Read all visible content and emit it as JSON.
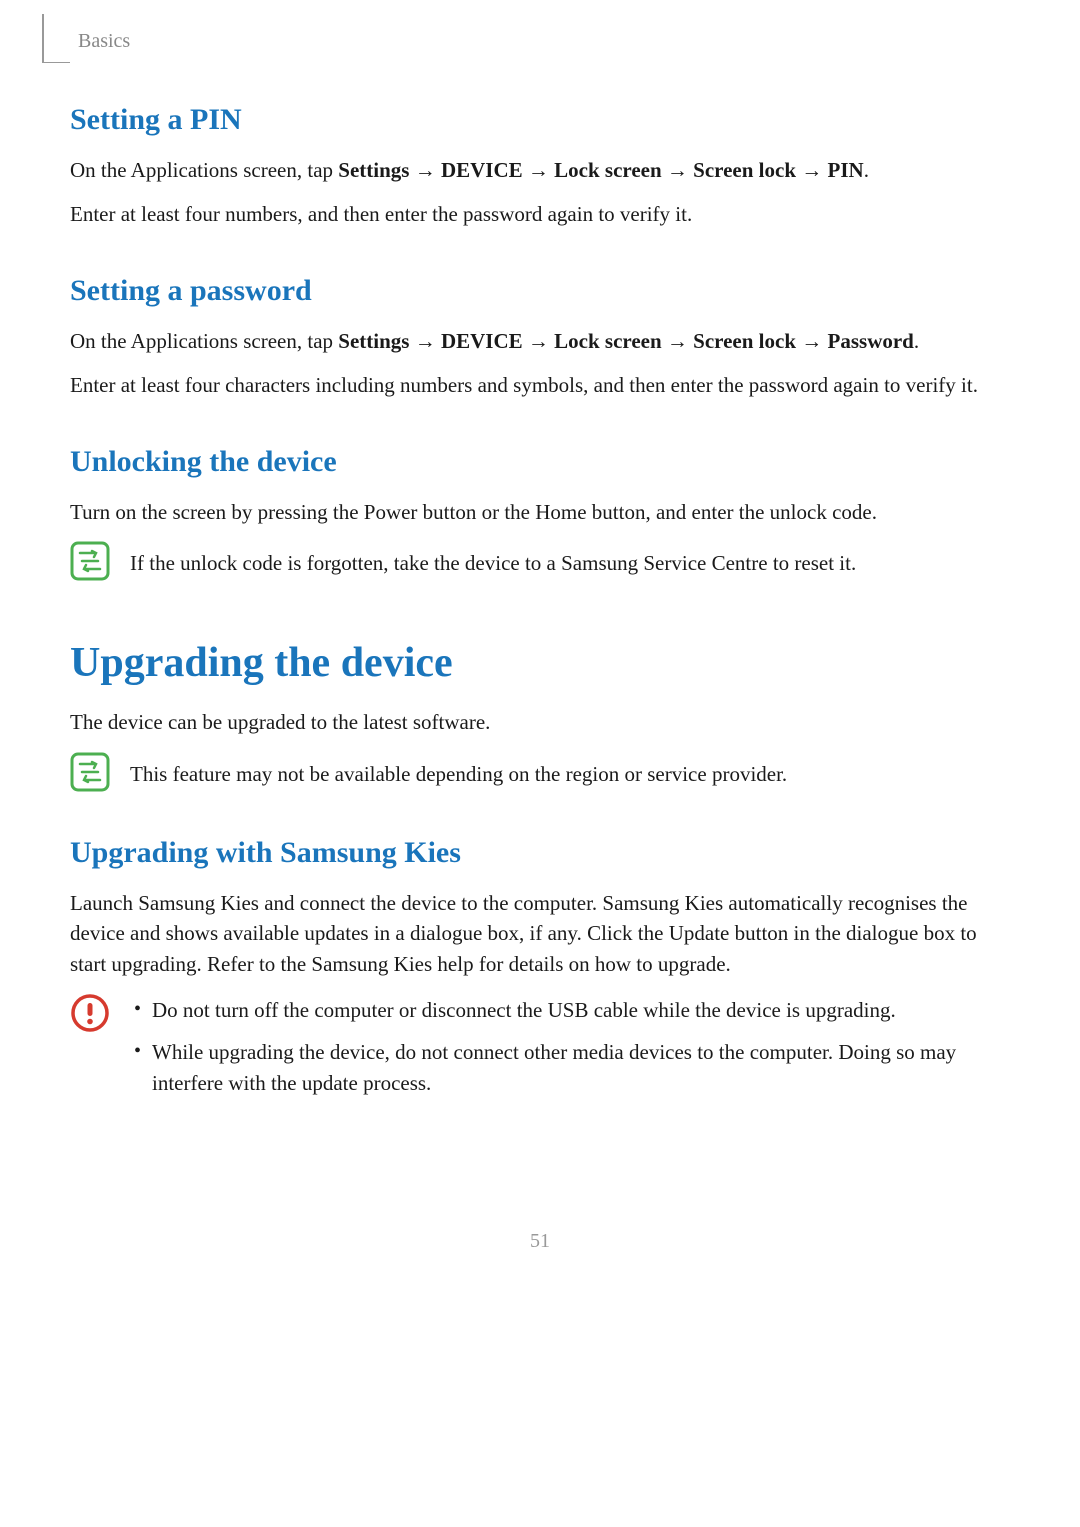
{
  "colors": {
    "heading_blue": "#1a75bb",
    "body_text": "#1a1a1a",
    "muted_gray": "#888888",
    "note_green": "#4caf50",
    "warning_red": "#d63a2e",
    "page_bg": "#ffffff"
  },
  "typography": {
    "body_fontsize": 21,
    "section_heading_fontsize": 30,
    "major_heading_fontsize": 42,
    "header_label_fontsize": 20
  },
  "header": {
    "breadcrumb": "Basics"
  },
  "sections": {
    "pin": {
      "heading": "Setting a PIN",
      "intro_prefix": "On the Applications screen, tap ",
      "path": [
        "Settings",
        "DEVICE",
        "Lock screen",
        "Screen lock",
        "PIN"
      ],
      "intro_suffix": ".",
      "body": "Enter at least four numbers, and then enter the password again to verify it."
    },
    "password": {
      "heading": "Setting a password",
      "intro_prefix": "On the Applications screen, tap ",
      "path": [
        "Settings",
        "DEVICE",
        "Lock screen",
        "Screen lock",
        "Password"
      ],
      "intro_suffix": ".",
      "body": "Enter at least four characters including numbers and symbols, and then enter the password again to verify it."
    },
    "unlock": {
      "heading": "Unlocking the device",
      "body": "Turn on the screen by pressing the Power button or the Home button, and enter the unlock code.",
      "note": "If the unlock code is forgotten, take the device to a Samsung Service Centre to reset it."
    },
    "upgrade": {
      "heading": "Upgrading the device",
      "body": "The device can be upgraded to the latest software.",
      "note": "This feature may not be available depending on the region or service provider."
    },
    "kies": {
      "heading": "Upgrading with Samsung Kies",
      "body": "Launch Samsung Kies and connect the device to the computer. Samsung Kies automatically recognises the device and shows available updates in a dialogue box, if any. Click the Update button in the dialogue box to start upgrading. Refer to the Samsung Kies help for details on how to upgrade.",
      "warnings": [
        "Do not turn off the computer or disconnect the USB cable while the device is upgrading.",
        "While upgrading the device, do not connect other media devices to the computer. Doing so may interfere with the update process."
      ]
    }
  },
  "arrow": "→",
  "page_number": "51"
}
